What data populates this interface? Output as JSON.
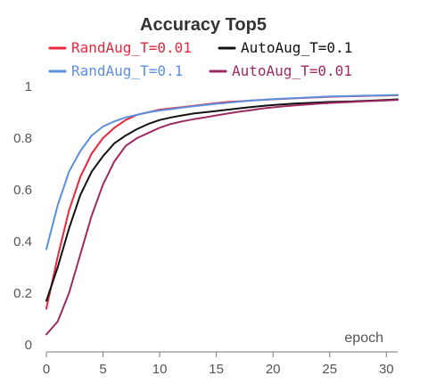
{
  "chart_data": {
    "type": "line",
    "title": "Accuracy Top5",
    "xlabel": "epoch",
    "ylabel": "",
    "xlim": [
      0,
      31
    ],
    "ylim": [
      0,
      1
    ],
    "x_ticks": [
      0,
      5,
      10,
      15,
      20,
      25,
      30
    ],
    "y_ticks": [
      0,
      0.2,
      0.4,
      0.6,
      0.8,
      1
    ],
    "x_tick_labels": [
      "0",
      "5",
      "10",
      "15",
      "20",
      "25",
      "30"
    ],
    "y_tick_labels": [
      "0",
      "0.2",
      "0.4",
      "0.6",
      "0.8",
      "1"
    ],
    "grid": false,
    "legend_position": "top",
    "series": [
      {
        "name": "RandAug_T=0.01",
        "color": "#e8283c",
        "x": [
          0,
          1,
          2,
          3,
          4,
          5,
          6,
          7,
          8,
          9,
          10,
          11,
          12,
          13,
          14,
          15,
          16,
          17,
          18,
          19,
          20,
          21,
          22,
          23,
          24,
          25,
          26,
          27,
          28,
          29,
          30,
          31
        ],
        "values": [
          0.14,
          0.34,
          0.52,
          0.65,
          0.74,
          0.8,
          0.84,
          0.87,
          0.89,
          0.9,
          0.91,
          0.915,
          0.92,
          0.925,
          0.93,
          0.935,
          0.94,
          0.942,
          0.945,
          0.948,
          0.95,
          0.952,
          0.954,
          0.956,
          0.958,
          0.96,
          0.961,
          0.962,
          0.963,
          0.964,
          0.965,
          0.966
        ]
      },
      {
        "name": "RandAug_T=0.1",
        "color": "#5b8fde",
        "x": [
          0,
          1,
          2,
          3,
          4,
          5,
          6,
          7,
          8,
          9,
          10,
          11,
          12,
          13,
          14,
          15,
          16,
          17,
          18,
          19,
          20,
          21,
          22,
          23,
          24,
          25,
          26,
          27,
          28,
          29,
          30,
          31
        ],
        "values": [
          0.37,
          0.54,
          0.67,
          0.75,
          0.81,
          0.845,
          0.865,
          0.88,
          0.89,
          0.9,
          0.907,
          0.912,
          0.918,
          0.923,
          0.928,
          0.933,
          0.937,
          0.941,
          0.945,
          0.948,
          0.951,
          0.953,
          0.955,
          0.957,
          0.959,
          0.961,
          0.962,
          0.963,
          0.964,
          0.965,
          0.966,
          0.967
        ]
      },
      {
        "name": "AutoAug_T=0.1",
        "color": "#111111",
        "x": [
          0,
          1,
          2,
          3,
          4,
          5,
          6,
          7,
          8,
          9,
          10,
          11,
          12,
          13,
          14,
          15,
          16,
          17,
          18,
          19,
          20,
          21,
          22,
          23,
          24,
          25,
          26,
          27,
          28,
          29,
          30,
          31
        ],
        "values": [
          0.17,
          0.3,
          0.45,
          0.58,
          0.67,
          0.73,
          0.78,
          0.81,
          0.835,
          0.855,
          0.87,
          0.88,
          0.888,
          0.895,
          0.9,
          0.905,
          0.91,
          0.915,
          0.92,
          0.924,
          0.928,
          0.931,
          0.934,
          0.936,
          0.938,
          0.94,
          0.941,
          0.942,
          0.944,
          0.946,
          0.948,
          0.95
        ]
      },
      {
        "name": "AutoAug_T=0.01",
        "color": "#9e2a63",
        "x": [
          0,
          1,
          2,
          3,
          4,
          5,
          6,
          7,
          8,
          9,
          10,
          11,
          12,
          13,
          14,
          15,
          16,
          17,
          18,
          19,
          20,
          21,
          22,
          23,
          24,
          25,
          26,
          27,
          28,
          29,
          30,
          31
        ],
        "values": [
          0.04,
          0.09,
          0.2,
          0.35,
          0.5,
          0.62,
          0.71,
          0.77,
          0.8,
          0.82,
          0.84,
          0.855,
          0.865,
          0.873,
          0.88,
          0.888,
          0.895,
          0.902,
          0.908,
          0.914,
          0.919,
          0.923,
          0.927,
          0.93,
          0.933,
          0.936,
          0.938,
          0.94,
          0.942,
          0.944,
          0.946,
          0.948
        ]
      }
    ]
  },
  "colors": {
    "axis": "#777777",
    "tick_text": "#555555",
    "title": "#333333"
  }
}
